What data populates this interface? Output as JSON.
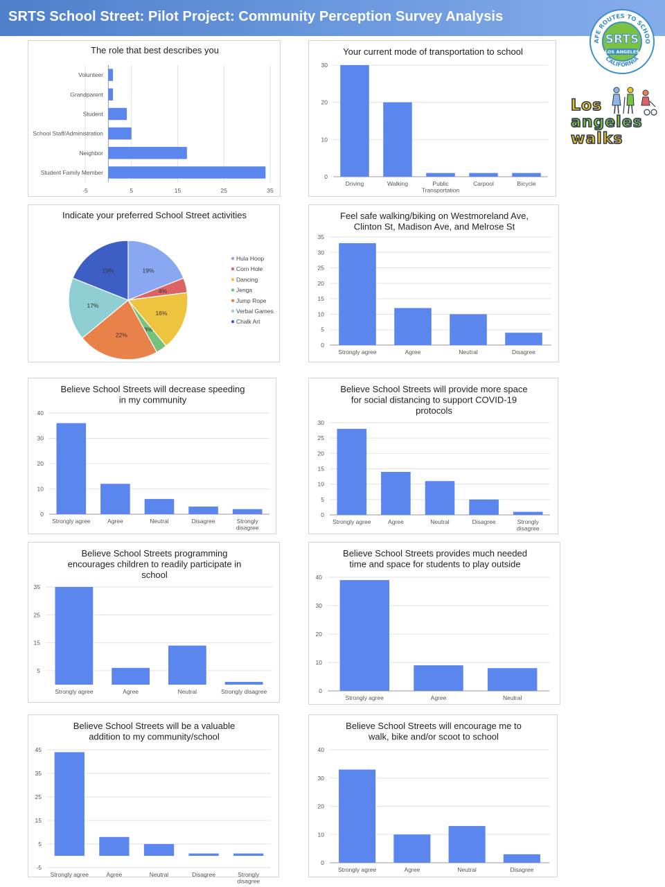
{
  "page": {
    "title": "SRTS School Street: Pilot Project: Community Perception Survey Analysis"
  },
  "logos": {
    "srts": {
      "ring_top": "SAFE ROUTES TO SCHOOL",
      "ring_bottom": "CALIFORNIA",
      "center": "SRTS",
      "sub": "LOS ANGELES"
    },
    "la_walks": {
      "line1": "Los",
      "line2": "angeles",
      "line3": "walks"
    }
  },
  "colors": {
    "bar": "#5b86ee",
    "banner": "#5a88d6"
  },
  "chart_data": [
    {
      "id": "role",
      "type": "bar",
      "orientation": "horizontal",
      "title_lines": [
        "The role that best describes you"
      ],
      "categories": [
        "Volunteer",
        "Grandparent",
        "Student",
        "School Staff/Administration",
        "Neighbor",
        "Student Family Member"
      ],
      "values": [
        1,
        1,
        4,
        5,
        17,
        34
      ],
      "xlim": [
        -5,
        35
      ],
      "ticks": [
        -5,
        5,
        15,
        25,
        35
      ]
    },
    {
      "id": "mode",
      "type": "bar",
      "title_lines": [
        "Your current mode of transportation to school"
      ],
      "categories": [
        "Driving",
        "Walking",
        "Public Transportation",
        "Carpool",
        "Bicycle"
      ],
      "values": [
        30,
        20,
        1,
        1,
        1
      ],
      "ylim": [
        0,
        30
      ],
      "ticks": [
        0,
        10,
        20,
        30
      ]
    },
    {
      "id": "activities",
      "type": "pie",
      "title_lines": [
        "Indicate your preferred School Street activities"
      ],
      "slices": [
        {
          "label": "Hula Hoop",
          "value": 19,
          "pct": "19%",
          "color": "#8aa7f2"
        },
        {
          "label": "Corn Hole",
          "value": 4,
          "pct": "4%",
          "color": "#dd6464"
        },
        {
          "label": "Dancing",
          "value": 16,
          "pct": "16%",
          "color": "#eec43e"
        },
        {
          "label": "Jenga",
          "value": 3,
          "pct": "3%",
          "color": "#77c27a"
        },
        {
          "label": "Jump Rope",
          "value": 22,
          "pct": "22%",
          "color": "#e9824a"
        },
        {
          "label": "Verbal Games",
          "value": 17,
          "pct": "17%",
          "color": "#8fcfd3"
        },
        {
          "label": "Chalk Art",
          "value": 19,
          "pct": "19%",
          "color": "#3d5fc4"
        }
      ]
    },
    {
      "id": "safe",
      "type": "bar",
      "title_lines": [
        "Feel safe walking/biking on Westmoreland Ave,",
        "Clinton St, Madison Ave, and Melrose St"
      ],
      "categories": [
        "Strongly agree",
        "Agree",
        "Neutral",
        "Disagree"
      ],
      "values": [
        33,
        12,
        10,
        4
      ],
      "ylim": [
        0,
        35
      ],
      "ticks": [
        0,
        5,
        10,
        15,
        20,
        25,
        30,
        35
      ]
    },
    {
      "id": "speeding",
      "type": "bar",
      "title_lines": [
        "Believe School Streets will decrease speeding",
        "in my community"
      ],
      "categories": [
        "Strongly agree",
        "Agree",
        "Neutral",
        "Disagree",
        "Strongly disagree"
      ],
      "values": [
        36,
        12,
        6,
        3,
        2
      ],
      "ylim": [
        0,
        40
      ],
      "ticks": [
        0,
        10,
        20,
        30,
        40
      ]
    },
    {
      "id": "distancing",
      "type": "bar",
      "title_lines": [
        "Believe School Streets will provide more space",
        "for social distancing to support COVID-19",
        "protocols"
      ],
      "categories": [
        "Strongly agree",
        "Agree",
        "Neutral",
        "Disagree",
        "Strongly disagree"
      ],
      "values": [
        28,
        14,
        11,
        5,
        1
      ],
      "ylim": [
        0,
        30
      ],
      "ticks": [
        0,
        5,
        10,
        15,
        20,
        25,
        30
      ]
    },
    {
      "id": "programming",
      "type": "bar",
      "title_lines": [
        "Believe School Streets programming",
        "encourages children to readily participate in",
        "school"
      ],
      "categories": [
        "Strongly agree",
        "Agree",
        "Neutral",
        "Strongly disagree"
      ],
      "values": [
        35,
        6,
        14,
        1
      ],
      "ylim": [
        0,
        35
      ],
      "ticks": [
        5,
        15,
        25,
        35
      ]
    },
    {
      "id": "play",
      "type": "bar",
      "title_lines": [
        "Believe School Streets provides much needed",
        "time and space for students to play outside"
      ],
      "categories": [
        "Strongly agree",
        "Agree",
        "Neutral"
      ],
      "values": [
        39,
        9,
        8
      ],
      "ylim": [
        0,
        40
      ],
      "ticks": [
        0,
        10,
        20,
        30,
        40
      ]
    },
    {
      "id": "valuable",
      "type": "bar",
      "title_lines": [
        "Believe School Streets will be a valuable",
        "addition to my community/school"
      ],
      "categories": [
        "Strongly agree",
        "Agree",
        "Neutral",
        "Disagree",
        "Strongly disagree"
      ],
      "values": [
        44,
        8,
        5,
        1,
        1
      ],
      "ylim": [
        -5,
        45
      ],
      "ticks": [
        -5,
        5,
        15,
        25,
        35,
        45
      ]
    },
    {
      "id": "encourage",
      "type": "bar",
      "title_lines": [
        "Believe School Streets will encourage me to",
        "walk, bike and/or scoot to school"
      ],
      "categories": [
        "Strongly agree",
        "Agree",
        "Neutral",
        "Disagree"
      ],
      "values": [
        33,
        10,
        13,
        3
      ],
      "ylim": [
        0,
        40
      ],
      "ticks": [
        0,
        10,
        20,
        30,
        40
      ]
    }
  ]
}
